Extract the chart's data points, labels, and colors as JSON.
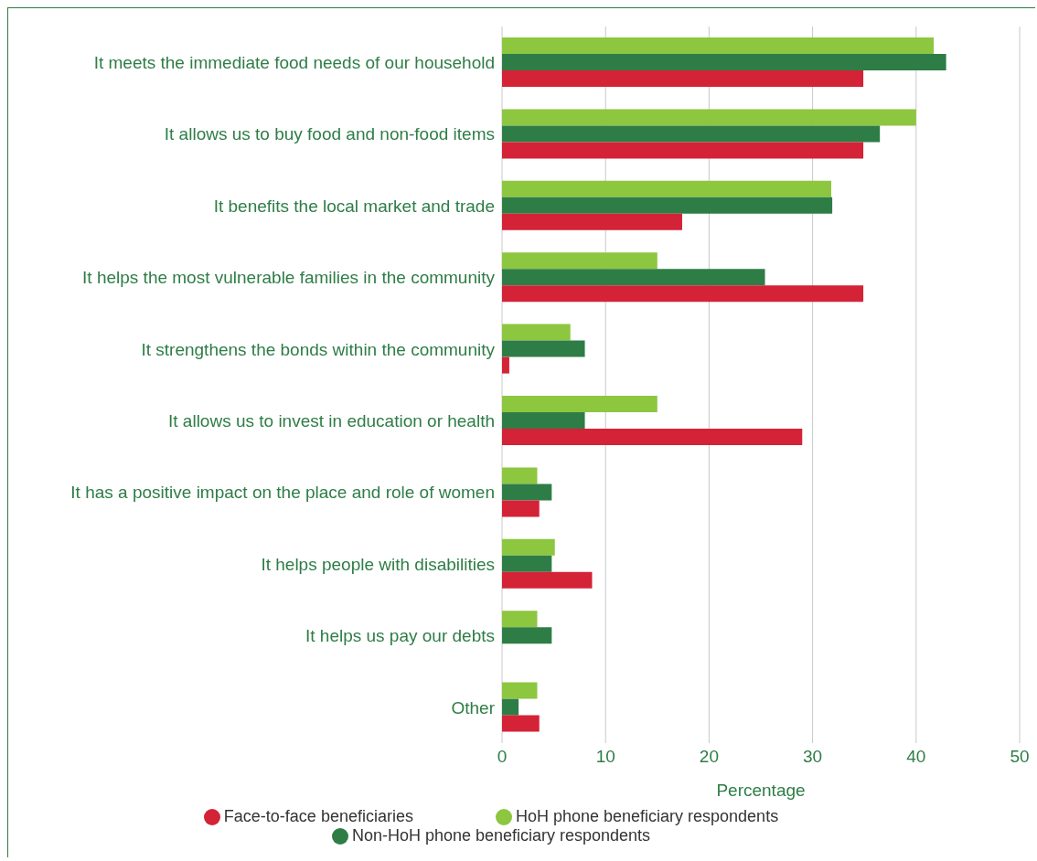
{
  "chart_data": {
    "type": "bar",
    "orientation": "horizontal",
    "xlabel": "Percentage",
    "categories": [
      "It meets the immediate food needs of our household",
      "It allows us to buy food and non-food items",
      "It benefits the local market and trade",
      "It helps the most vulnerable families in the community",
      "It strengthens the bonds within the community",
      "It allows us to invest in education or health",
      "It has a positive impact on the place and role of women",
      "It helps people with disabilities",
      "It helps us pay our debts",
      "Other"
    ],
    "series": [
      {
        "name": "HoH phone beneficiary respondents",
        "color": "#8dc63f",
        "values": [
          41.7,
          40.0,
          31.8,
          15.0,
          6.6,
          15.0,
          3.4,
          5.1,
          3.4,
          3.4
        ]
      },
      {
        "name": "Non-HoH phone beneficiary respondents",
        "color": "#2e7d46",
        "values": [
          42.9,
          36.5,
          31.9,
          25.4,
          8.0,
          8.0,
          4.8,
          4.8,
          4.8,
          1.6
        ]
      },
      {
        "name": "Face-to-face beneficiaries",
        "color": "#d42237",
        "values": [
          34.9,
          34.9,
          17.4,
          34.9,
          0.7,
          29.0,
          3.6,
          8.7,
          0,
          3.6
        ]
      }
    ],
    "xlim": [
      0,
      50
    ],
    "xticks": [
      0,
      10,
      20,
      30,
      40,
      50
    ],
    "grid": "x",
    "legend": "bottom"
  }
}
